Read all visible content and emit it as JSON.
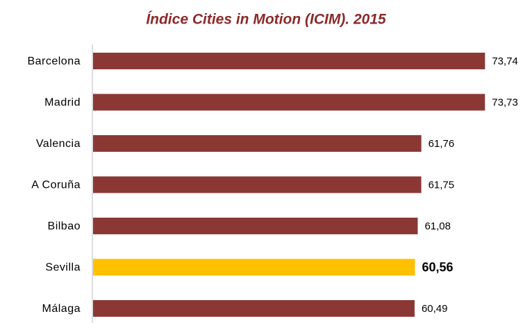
{
  "chart_data": {
    "type": "bar",
    "orientation": "horizontal",
    "title": "Índice Cities in Motion (ICIM). 2015",
    "categories": [
      "Barcelona",
      "Madrid",
      "Valencia",
      "A Coruña",
      "Bilbao",
      "Sevilla",
      "Málaga"
    ],
    "values": [
      73.74,
      73.73,
      61.76,
      61.75,
      61.08,
      60.56,
      60.49
    ],
    "value_labels": [
      "73,74",
      "73,73",
      "61,76",
      "61,75",
      "61,08",
      "60,56",
      "60,49"
    ],
    "colors": [
      "#8b3835",
      "#8b3835",
      "#8b3835",
      "#8b3835",
      "#8b3835",
      "#ffc000",
      "#8b3835"
    ],
    "xlim": [
      0,
      75
    ]
  }
}
